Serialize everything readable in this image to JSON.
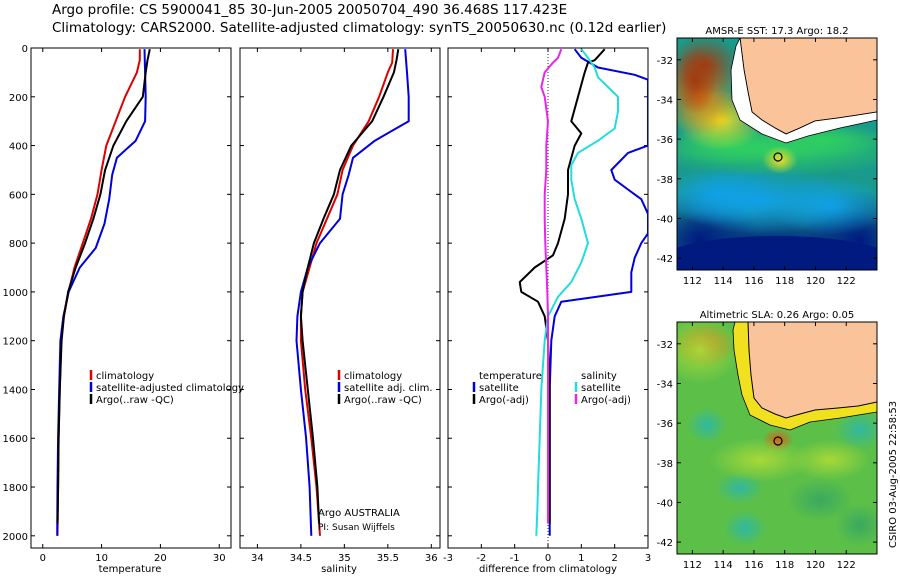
{
  "header": {
    "line1": "Argo profile: CS 5900041_85 30-Jun-2005 20050704_490 36.468S 117.423E",
    "line2": "Climatology: CARS2000. Satellite-adjusted climatology: synTS_20050630.nc (0.12d earlier)"
  },
  "credit": "CSIRO 03-Aug-2005 22:58:53",
  "colors": {
    "climatology": "#dd0000",
    "satellite": "#0000dd",
    "argo": "#000000",
    "salinity_sat": "#22dddd",
    "salinity_argo": "#ee22ee"
  },
  "chart_data": [
    {
      "type": "line",
      "id": "temperature",
      "xlabel": "temperature",
      "ylabel": "",
      "xlim": [
        -2,
        32
      ],
      "ylim": [
        0,
        2050
      ],
      "y_inverted": true,
      "xticks": [
        "0",
        "10",
        "20",
        "30"
      ],
      "yticks": [
        "0",
        "200",
        "400",
        "600",
        "800",
        "1000",
        "1200",
        "1400",
        "1600",
        "1800",
        "2000"
      ],
      "legend": [
        "climatology",
        "satellite-adjusted climatology",
        "Argo(..raw -QC)"
      ],
      "series": [
        {
          "name": "climatology",
          "color": "#dd0000",
          "x": [
            16.5,
            16.5,
            16.0,
            14.0,
            12.4,
            10.8,
            10.0,
            9.3,
            8.2,
            6.8,
            5.4,
            4.4,
            3.6,
            3.1,
            2.9,
            2.7,
            2.6,
            2.5
          ],
          "y": [
            5,
            50,
            100,
            200,
            300,
            400,
            500,
            600,
            700,
            800,
            900,
            1000,
            1100,
            1200,
            1400,
            1600,
            1800,
            2000
          ]
        },
        {
          "name": "satellite-adjusted climatology",
          "color": "#0000dd",
          "x": [
            17.3,
            17.4,
            17.5,
            17.4,
            15.8,
            12.6,
            11.8,
            11.3,
            10.5,
            9.0,
            6.3,
            4.4,
            3.5,
            3.0,
            2.8,
            2.6,
            2.5,
            2.45
          ],
          "y": [
            5,
            100,
            200,
            300,
            380,
            450,
            520,
            620,
            720,
            820,
            900,
            1000,
            1100,
            1200,
            1400,
            1600,
            1800,
            2000
          ]
        },
        {
          "name": "Argo(..raw -QC)",
          "color": "#000000",
          "x": [
            18.2,
            17.8,
            17.5,
            17.0,
            14.2,
            12.0,
            10.6,
            9.8,
            8.6,
            7.2,
            5.6,
            4.3,
            3.6,
            3.2,
            2.9,
            2.7,
            2.6,
            2.5
          ],
          "y": [
            5,
            50,
            100,
            200,
            300,
            400,
            500,
            600,
            700,
            800,
            900,
            1000,
            1100,
            1200,
            1400,
            1600,
            1800,
            1950
          ]
        }
      ]
    },
    {
      "type": "line",
      "id": "salinity",
      "xlabel": "salinity",
      "xlim": [
        33.8,
        36.1
      ],
      "ylim": [
        0,
        2050
      ],
      "y_inverted": true,
      "xticks": [
        "34",
        "34.5",
        "35",
        "35.5",
        "36"
      ],
      "legend": [
        "climatology",
        "satellite adj. clim.",
        "Argo(..raw -QC)"
      ],
      "annotations": [
        "Argo AUSTRALIA",
        "PI: Susan Wijffels"
      ],
      "series": [
        {
          "name": "climatology",
          "color": "#dd0000",
          "x": [
            35.56,
            35.55,
            35.5,
            35.4,
            35.28,
            35.1,
            34.98,
            34.92,
            34.8,
            34.68,
            34.6,
            34.52,
            34.5,
            34.5,
            34.55,
            34.62,
            34.68,
            34.72
          ],
          "y": [
            5,
            60,
            100,
            200,
            300,
            400,
            500,
            600,
            700,
            800,
            900,
            1000,
            1100,
            1200,
            1400,
            1600,
            1800,
            2000
          ]
        },
        {
          "name": "satellite adj. clim.",
          "color": "#0000dd",
          "x": [
            35.7,
            35.72,
            35.74,
            35.74,
            35.35,
            35.1,
            35.05,
            34.98,
            34.95,
            34.72,
            34.58,
            34.5,
            34.46,
            34.45,
            34.5,
            34.56,
            34.6,
            34.62
          ],
          "y": [
            5,
            100,
            200,
            300,
            380,
            450,
            520,
            600,
            700,
            800,
            900,
            1000,
            1100,
            1200,
            1400,
            1600,
            1800,
            2000
          ]
        },
        {
          "name": "Argo(..raw -QC)",
          "color": "#000000",
          "x": [
            35.62,
            35.6,
            35.57,
            35.45,
            35.32,
            35.08,
            34.95,
            34.88,
            34.76,
            34.65,
            34.58,
            34.52,
            34.5,
            34.52,
            34.58,
            34.64,
            34.69,
            34.71
          ],
          "y": [
            5,
            50,
            100,
            200,
            300,
            400,
            500,
            600,
            700,
            800,
            900,
            1000,
            1100,
            1200,
            1400,
            1600,
            1800,
            1950
          ]
        }
      ]
    },
    {
      "type": "line",
      "id": "difference",
      "xlabel": "difference from climatology",
      "xlim": [
        -3,
        3
      ],
      "ylim": [
        0,
        2050
      ],
      "y_inverted": true,
      "zero_line": true,
      "xticks": [
        "-3",
        "-2",
        "-1",
        "0",
        "1",
        "2",
        "3"
      ],
      "legend_left": [
        "temperature",
        "satellite",
        "Argo(-adj)"
      ],
      "legend_right": [
        "salinity",
        "satellite",
        "Argo(-adj)"
      ],
      "series": [
        {
          "name": "temperature satellite",
          "color": "#0000dd",
          "x": [
            0.8,
            1.0,
            1.5,
            2.6,
            3.0,
            3.0,
            3.0,
            3.0,
            2.4,
            1.9,
            2.0,
            2.4,
            2.8,
            3.0,
            3.0,
            2.8,
            2.6,
            2.5,
            2.5,
            0.4,
            0.2,
            0.1,
            0.05,
            0.05,
            0.05
          ],
          "y": [
            5,
            40,
            80,
            110,
            130,
            160,
            200,
            400,
            430,
            500,
            540,
            580,
            620,
            680,
            760,
            800,
            860,
            920,
            1000,
            1040,
            1100,
            1200,
            1400,
            1700,
            2000
          ]
        },
        {
          "name": "temperature Argo(-adj)",
          "color": "#000000",
          "x": [
            1.7,
            1.4,
            1.2,
            1.1,
            0.9,
            0.7,
            1.0,
            0.8,
            0.6,
            0.6,
            0.5,
            0.3,
            0.15,
            -0.4,
            -0.85,
            -0.8,
            -0.3,
            -0.1,
            0.0,
            0.05,
            0.05,
            0.05,
            0.05
          ],
          "y": [
            5,
            50,
            60,
            100,
            200,
            300,
            350,
            400,
            500,
            600,
            700,
            800,
            850,
            900,
            960,
            1000,
            1040,
            1100,
            1200,
            1400,
            1600,
            1800,
            1950
          ]
        },
        {
          "name": "salinity satellite",
          "color": "#22dddd",
          "x": [
            1.0,
            1.2,
            1.4,
            1.5,
            1.8,
            2.1,
            2.1,
            2.0,
            1.5,
            0.9,
            0.7,
            0.7,
            0.8,
            1.0,
            1.2,
            1.0,
            0.7,
            0.3,
            0.0,
            -0.1,
            -0.2,
            -0.25,
            -0.3,
            -0.32,
            -0.35
          ],
          "y": [
            5,
            40,
            80,
            120,
            160,
            200,
            260,
            330,
            380,
            430,
            480,
            540,
            620,
            700,
            800,
            880,
            960,
            1020,
            1100,
            1200,
            1400,
            1600,
            1800,
            1900,
            2000
          ]
        },
        {
          "name": "salinity Argo(-adj)",
          "color": "#ee22ee",
          "x": [
            0.4,
            0.3,
            0.15,
            -0.1,
            -0.2,
            -0.1,
            0.0,
            -0.05,
            -0.05,
            -0.1,
            -0.1,
            -0.08,
            -0.05,
            -0.02,
            0.0,
            0.0,
            0.0,
            0.0,
            0.0
          ],
          "y": [
            5,
            40,
            60,
            100,
            160,
            200,
            300,
            400,
            500,
            600,
            700,
            800,
            900,
            1000,
            1100,
            1200,
            1400,
            1700,
            1950
          ]
        }
      ]
    },
    {
      "type": "heatmap",
      "id": "sst_map",
      "title": "AMSR-E SST: 17.3 Argo: 18.2",
      "xlim": [
        111,
        124
      ],
      "ylim": [
        -42.6,
        -30.9
      ],
      "xticks": [
        "112",
        "114",
        "116",
        "118",
        "120",
        "122"
      ],
      "yticks": [
        "-32",
        "-34",
        "-36",
        "-38",
        "-40",
        "-42"
      ],
      "marker": {
        "lon": 117.42,
        "lat": -36.47
      }
    },
    {
      "type": "heatmap",
      "id": "sla_map",
      "title": "Altimetric SLA: 0.26 Argo: 0.05",
      "xlim": [
        111,
        124
      ],
      "ylim": [
        -42.6,
        -30.9
      ],
      "xticks": [
        "112",
        "114",
        "116",
        "118",
        "120",
        "122"
      ],
      "yticks": [
        "-32",
        "-34",
        "-36",
        "-38",
        "-40",
        "-42"
      ],
      "marker": {
        "lon": 117.42,
        "lat": -36.47
      }
    }
  ]
}
